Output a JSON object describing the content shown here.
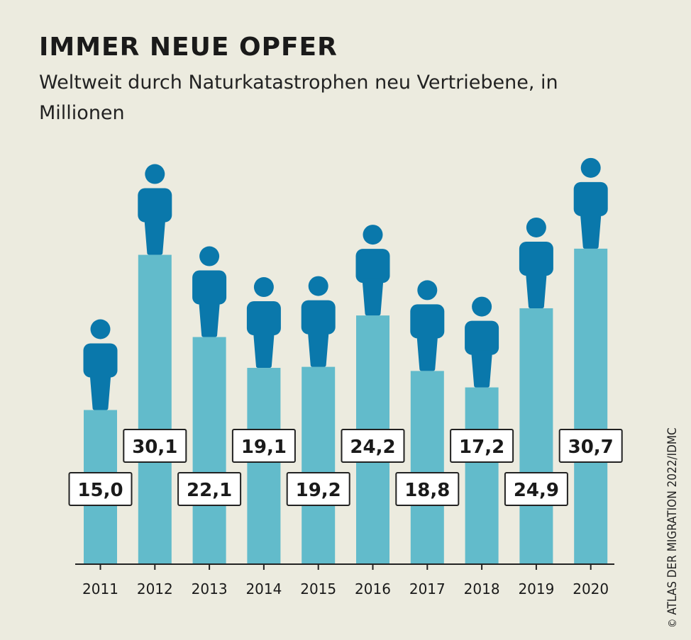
{
  "header": {
    "title": "IMMER NEUE OPFER",
    "subtitle": "Weltweit durch Naturkatastrophen neu Vertriebene, in Millionen"
  },
  "credit": {
    "symbol": "©",
    "text": "ATLAS DER MIGRATION 2022/IDMC"
  },
  "colors": {
    "bar": "#62bbcb",
    "figure": "#0a78ab",
    "axis": "#222222",
    "label_border": "#222222",
    "background": "#ecebdf"
  },
  "chart_data": {
    "type": "bar",
    "title": "IMMER NEUE OPFER",
    "subtitle": "Weltweit durch Naturkatastrophen neu Vertriebene, in Millionen",
    "categories": [
      "2011",
      "2012",
      "2013",
      "2014",
      "2015",
      "2016",
      "2017",
      "2018",
      "2019",
      "2020"
    ],
    "values": [
      15.0,
      30.1,
      22.1,
      19.1,
      19.2,
      24.2,
      18.8,
      17.2,
      24.9,
      30.7
    ],
    "value_labels": [
      "15,0",
      "30,1",
      "22,1",
      "19,1",
      "19,2",
      "24,2",
      "18,8",
      "17,2",
      "24,9",
      "30,7"
    ],
    "ylim": [
      0,
      35
    ],
    "grid": false,
    "legend": "none",
    "marker": "person-icon"
  }
}
